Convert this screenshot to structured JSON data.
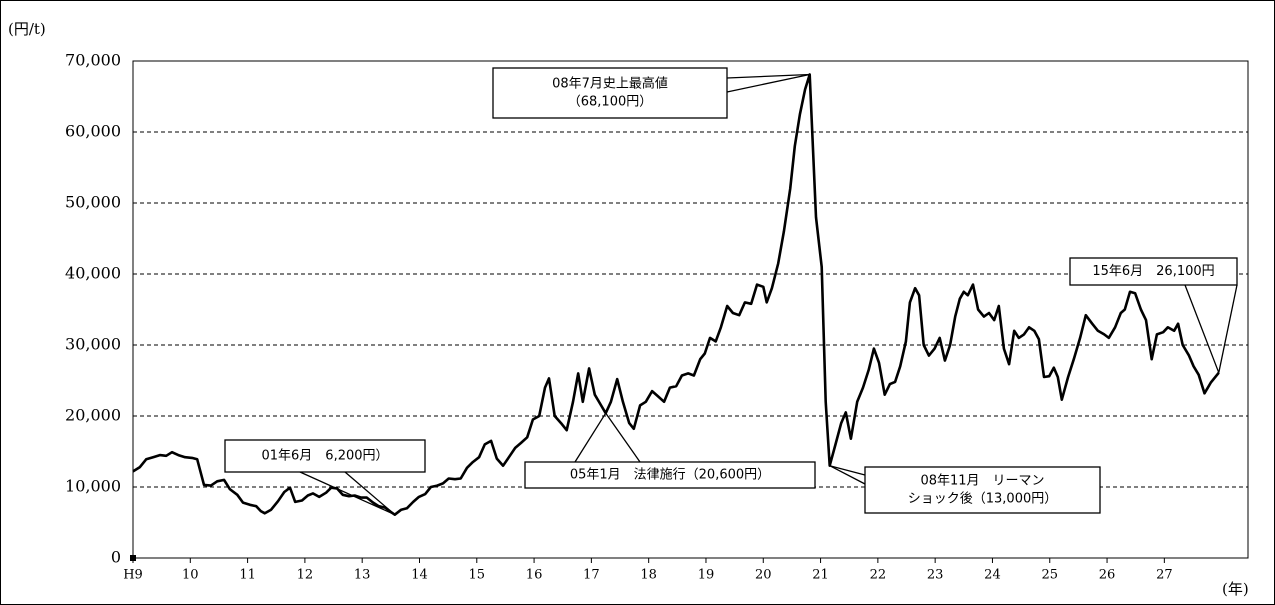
{
  "chart_data": {
    "type": "line",
    "y_unit_label": "(円/t)",
    "x_unit_label": "(年)",
    "color": "#000000",
    "grid": true,
    "xlim": [
      9,
      28.46
    ],
    "ylim": [
      0,
      70000
    ],
    "xticks": [
      {
        "value": 9,
        "label": "H9"
      },
      10,
      11,
      12,
      13,
      14,
      15,
      16,
      17,
      18,
      19,
      20,
      21,
      22,
      23,
      24,
      25,
      26,
      27
    ],
    "yticks": [
      0,
      {
        "value": 10000,
        "label": "10,000"
      },
      {
        "value": 20000,
        "label": "20,000"
      },
      {
        "value": 30000,
        "label": "30,000"
      },
      {
        "value": 40000,
        "label": "40,000"
      },
      {
        "value": 50000,
        "label": "50,000"
      },
      {
        "value": 60000,
        "label": "60,000"
      },
      {
        "value": 70000,
        "label": "70,000"
      }
    ],
    "x": [
      9.0,
      9.12,
      9.23,
      9.35,
      9.47,
      9.58,
      9.68,
      9.79,
      9.91,
      10.03,
      10.12,
      10.24,
      10.36,
      10.47,
      10.59,
      10.69,
      10.82,
      10.92,
      11.04,
      11.15,
      11.23,
      11.3,
      11.41,
      11.53,
      11.64,
      11.74,
      11.83,
      11.95,
      12.05,
      12.14,
      12.25,
      12.37,
      12.46,
      12.56,
      12.66,
      12.77,
      12.87,
      12.98,
      13.08,
      13.19,
      13.29,
      13.4,
      13.5,
      13.57,
      13.68,
      13.78,
      13.89,
      13.99,
      14.1,
      14.2,
      14.31,
      14.41,
      14.51,
      14.62,
      14.72,
      14.83,
      14.93,
      15.04,
      15.14,
      15.25,
      15.35,
      15.46,
      15.56,
      15.67,
      15.77,
      15.88,
      15.98,
      16.09,
      16.19,
      16.26,
      16.36,
      16.47,
      16.57,
      16.68,
      16.77,
      16.85,
      16.96,
      17.06,
      17.17,
      17.25,
      17.34,
      17.45,
      17.55,
      17.66,
      17.74,
      17.85,
      17.95,
      18.06,
      18.16,
      18.27,
      18.37,
      18.48,
      18.58,
      18.69,
      18.79,
      18.9,
      18.98,
      19.07,
      19.17,
      19.26,
      19.37,
      19.47,
      19.58,
      19.68,
      19.79,
      19.89,
      20.0,
      20.06,
      20.15,
      20.26,
      20.36,
      20.47,
      20.55,
      20.64,
      20.73,
      20.81,
      20.92,
      21.02,
      21.09,
      21.16,
      21.26,
      21.36,
      21.44,
      21.53,
      21.64,
      21.74,
      21.84,
      21.93,
      22.02,
      22.12,
      22.21,
      22.3,
      22.39,
      22.49,
      22.56,
      22.65,
      22.72,
      22.8,
      22.89,
      22.99,
      23.08,
      23.17,
      23.26,
      23.35,
      23.43,
      23.5,
      23.57,
      23.66,
      23.75,
      23.85,
      23.94,
      24.03,
      24.11,
      24.2,
      24.29,
      24.38,
      24.46,
      24.55,
      24.64,
      24.73,
      24.81,
      24.9,
      24.99,
      25.07,
      25.14,
      25.21,
      25.32,
      25.42,
      25.53,
      25.63,
      25.74,
      25.84,
      25.95,
      26.03,
      26.14,
      26.24,
      26.31,
      26.4,
      26.49,
      26.59,
      26.68,
      26.78,
      26.87,
      26.98,
      27.06,
      27.17,
      27.24,
      27.32,
      27.43,
      27.51,
      27.6,
      27.7,
      27.81,
      27.95
    ],
    "values": [
      12200,
      12800,
      13900,
      14200,
      14500,
      14400,
      14900,
      14500,
      14200,
      14100,
      13900,
      10300,
      10200,
      10800,
      11000,
      9700,
      8900,
      7800,
      7500,
      7300,
      6600,
      6300,
      6800,
      8000,
      9300,
      9900,
      7900,
      8100,
      8800,
      9100,
      8600,
      9200,
      9900,
      9800,
      8900,
      8700,
      8800,
      8500,
      8500,
      7800,
      7300,
      7100,
      6500,
      6100,
      6800,
      7000,
      7900,
      8600,
      9000,
      10000,
      10200,
      10500,
      11200,
      11100,
      11200,
      12700,
      13500,
      14200,
      16000,
      16500,
      14000,
      13000,
      14200,
      15500,
      16200,
      17000,
      19500,
      20000,
      24000,
      25300,
      20000,
      19000,
      18000,
      22000,
      26000,
      22000,
      26700,
      23000,
      21500,
      20400,
      22000,
      25200,
      22000,
      19000,
      18200,
      21500,
      22000,
      23500,
      22800,
      22000,
      24000,
      24200,
      25700,
      26000,
      25700,
      28000,
      28800,
      31000,
      30500,
      32500,
      35500,
      34500,
      34200,
      36000,
      35800,
      38500,
      38200,
      36000,
      38000,
      41500,
      46000,
      52000,
      58000,
      62500,
      66000,
      68100,
      48000,
      41000,
      22000,
      13000,
      16000,
      19000,
      20500,
      16800,
      22000,
      24000,
      26500,
      29500,
      27500,
      23000,
      24500,
      24800,
      27000,
      30500,
      36000,
      38000,
      37000,
      30000,
      28500,
      29500,
      31000,
      27800,
      30000,
      34000,
      36500,
      37500,
      37000,
      38500,
      35000,
      34000,
      34500,
      33500,
      35500,
      29500,
      27300,
      32000,
      31000,
      31500,
      32500,
      32000,
      30800,
      25500,
      25600,
      26800,
      25500,
      22300,
      25500,
      28000,
      31000,
      34200,
      33000,
      32000,
      31500,
      31000,
      32500,
      34500,
      35000,
      37500,
      37300,
      35000,
      33500,
      28000,
      31500,
      31800,
      32500,
      32000,
      33000,
      30000,
      28500,
      27000,
      25800,
      23200,
      24700,
      26100
    ],
    "annotations": [
      {
        "lines": [
          "08年7月史上最高値",
          "（68,100円）"
        ]
      },
      {
        "lines": [
          "01年6月　6,200円）"
        ]
      },
      {
        "lines": [
          "05年1月　法律施行（20,600円）"
        ]
      },
      {
        "lines": [
          "08年11月　リーマン",
          "ショック後（13,000円）"
        ]
      },
      {
        "lines": [
          "15年6月　26,100円"
        ]
      }
    ]
  }
}
